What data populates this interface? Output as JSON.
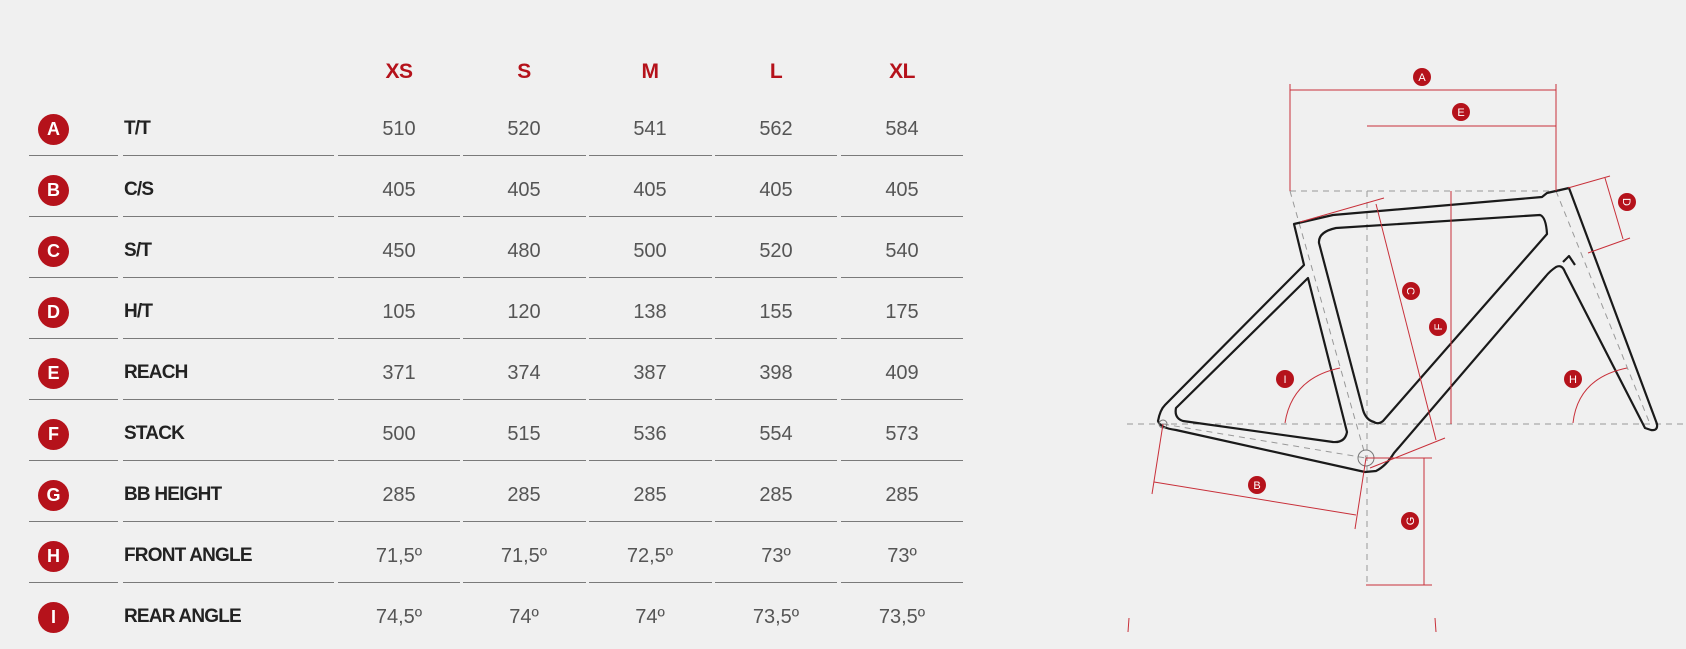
{
  "accent_color": "#b5121b",
  "sizes": [
    "XS",
    "S",
    "M",
    "L",
    "XL"
  ],
  "rows": [
    {
      "key": "A",
      "label": "T/T",
      "values": [
        "510",
        "520",
        "541",
        "562",
        "584"
      ]
    },
    {
      "key": "B",
      "label": "C/S",
      "values": [
        "405",
        "405",
        "405",
        "405",
        "405"
      ]
    },
    {
      "key": "C",
      "label": "S/T",
      "values": [
        "450",
        "480",
        "500",
        "520",
        "540"
      ]
    },
    {
      "key": "D",
      "label": "H/T",
      "values": [
        "105",
        "120",
        "138",
        "155",
        "175"
      ]
    },
    {
      "key": "E",
      "label": "REACH",
      "values": [
        "371",
        "374",
        "387",
        "398",
        "409"
      ]
    },
    {
      "key": "F",
      "label": "STACK",
      "values": [
        "500",
        "515",
        "536",
        "554",
        "573"
      ]
    },
    {
      "key": "G",
      "label": "BB HEIGHT",
      "values": [
        "285",
        "285",
        "285",
        "285",
        "285"
      ]
    },
    {
      "key": "H",
      "label": "FRONT ANGLE",
      "values": [
        "71,5º",
        "71,5º",
        "72,5º",
        "73º",
        "73º"
      ]
    },
    {
      "key": "I",
      "label": "REAR ANGLE",
      "values": [
        "74,5º",
        "74º",
        "74º",
        "73,5º",
        "73,5º"
      ]
    }
  ],
  "diagram": {
    "image": "bike-frame-geometry-diagram",
    "markers": [
      "A",
      "B",
      "C",
      "D",
      "E",
      "F",
      "G",
      "H",
      "I"
    ]
  }
}
